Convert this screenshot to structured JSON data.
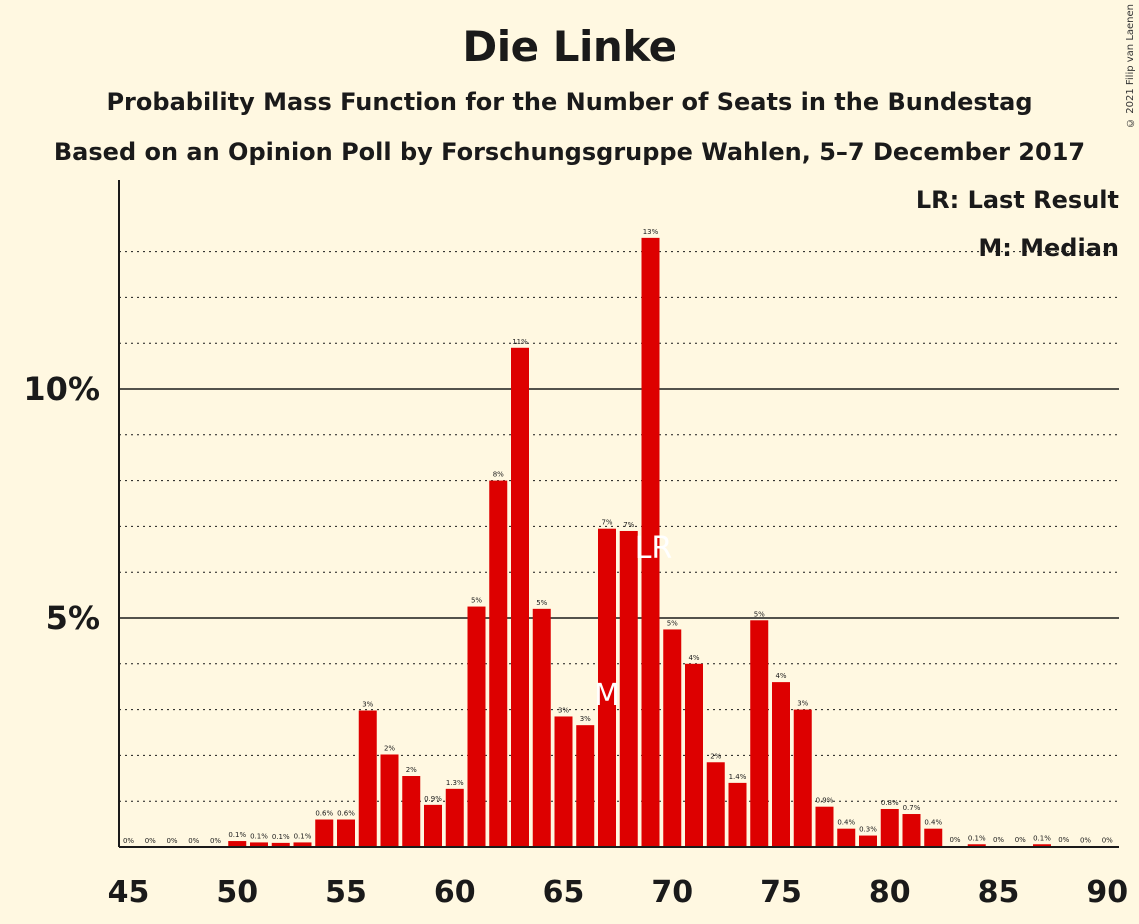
{
  "title": "Die Linke",
  "subtitle1": "Probability Mass Function for the Number of Seats in the Bundestag",
  "subtitle2": "Based on an Opinion Poll by Forschungsgruppe Wahlen, 5–7 December 2017",
  "copyright": "© 2021 Filip van Laenen",
  "legend": {
    "last_result": "LR: Last Result",
    "median": "M: Median"
  },
  "colors": {
    "bar": "#dd0000",
    "background": "#fff8e1",
    "text": "#1a1a1a"
  },
  "chart_data": {
    "type": "bar",
    "x": [
      45,
      46,
      47,
      48,
      49,
      50,
      51,
      52,
      53,
      54,
      55,
      56,
      57,
      58,
      59,
      60,
      61,
      62,
      63,
      64,
      65,
      66,
      67,
      68,
      69,
      70,
      71,
      72,
      73,
      74,
      75,
      76,
      77,
      78,
      79,
      80,
      81,
      82,
      83,
      84,
      85,
      86,
      87,
      88,
      89,
      90
    ],
    "values": [
      0,
      0,
      0,
      0,
      0,
      0.13,
      0.1,
      0.09,
      0.1,
      0.6,
      0.6,
      2.98,
      2.02,
      1.55,
      0.92,
      1.27,
      5.25,
      8.0,
      10.9,
      5.2,
      2.85,
      2.66,
      6.95,
      6.9,
      13.3,
      4.75,
      4.0,
      1.85,
      1.4,
      4.95,
      3.6,
      3.0,
      0.88,
      0.4,
      0.25,
      0.83,
      0.72,
      0.4,
      0.02,
      0.06,
      0.02,
      0.02,
      0.06,
      0.02,
      0.01,
      0.01
    ],
    "labels": [
      "0%",
      "0%",
      "0%",
      "0%",
      "0%",
      "0.1%",
      "0.1%",
      "0.1%",
      "0.1%",
      "0.6%",
      "0.6%",
      "3%",
      "2%",
      "2%",
      "0.9%",
      "1.3%",
      "5%",
      "8%",
      "11%",
      "5%",
      "3%",
      "3%",
      "7%",
      "7%",
      "13%",
      "5%",
      "4%",
      "2%",
      "1.4%",
      "5%",
      "4%",
      "3%",
      "0.9%",
      "0.4%",
      "0.3%",
      "0.8%",
      "0.7%",
      "0.4%",
      "0%",
      "0.1%",
      "0%",
      "0%",
      "0.1%",
      "0%",
      "0%",
      "0%"
    ],
    "x_ticks": [
      45,
      50,
      55,
      60,
      65,
      70,
      75,
      80,
      85,
      90
    ],
    "x_tick_labels": [
      "45",
      "50",
      "55",
      "60",
      "65",
      "70",
      "75",
      "80",
      "85",
      "90"
    ],
    "y_ticks": [
      5,
      10
    ],
    "y_tick_labels": [
      "5%",
      "10%"
    ],
    "ylim": [
      0,
      14.5
    ],
    "xlim": [
      45,
      90
    ],
    "median_seat": 67,
    "median_marker": "M",
    "last_result_seat": 69,
    "last_result_marker": "LR",
    "grid": "dotted lines at every 1%, solid at 5% and 10%"
  }
}
